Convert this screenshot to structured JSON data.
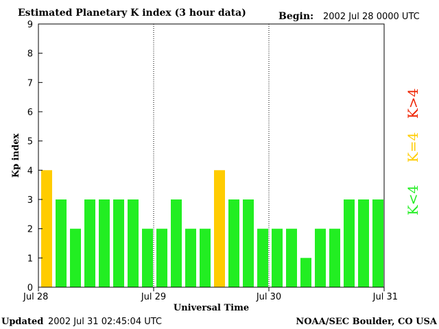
{
  "header": {
    "title": "Estimated Planetary K index (3 hour data)",
    "begin_label": "Begin:",
    "begin_value": "2002 Jul 28 0000 UTC"
  },
  "footer": {
    "updated_label": "Updated",
    "updated_value": "2002 Jul 31 02:45:04 UTC",
    "source": "NOAA/SEC Boulder, CO USA"
  },
  "legend": {
    "items": [
      {
        "label": "K<4",
        "color": "#22ee22"
      },
      {
        "label": "K=4",
        "color": "#ffcc00"
      },
      {
        "label": "K>4",
        "color": "#ee2200"
      }
    ]
  },
  "chart_data": {
    "type": "bar",
    "title": "Estimated Planetary K index (3 hour data)",
    "xlabel": "Universal Time",
    "ylabel": "Kp index",
    "ylim": [
      0,
      9
    ],
    "yticks": [
      0,
      1,
      2,
      3,
      4,
      5,
      6,
      7,
      8,
      9
    ],
    "x_ticks": [
      "Jul 28",
      "Jul 29",
      "Jul 30",
      "Jul 31"
    ],
    "interval_hours": 3,
    "values": [
      4,
      3,
      2,
      3,
      3,
      3,
      3,
      2,
      2,
      3,
      2,
      2,
      4,
      3,
      3,
      2,
      2,
      2,
      1,
      2,
      2,
      3,
      3,
      3
    ],
    "colors": {
      "below4": "#22ee22",
      "equal4": "#ffcc00",
      "above4": "#ee2200"
    }
  }
}
